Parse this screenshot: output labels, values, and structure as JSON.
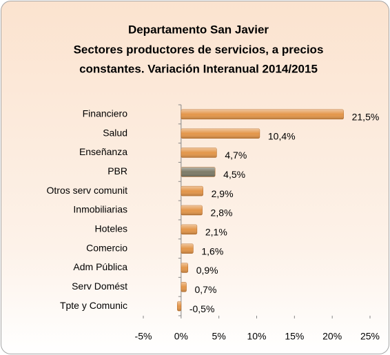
{
  "chart_data": {
    "type": "bar",
    "orientation": "horizontal",
    "title": [
      "Departamento San Javier",
      "Sectores productores de servicios, a precios",
      "constantes. Variación Interanual 2014/2015"
    ],
    "categories": [
      "Financiero",
      "Salud",
      "Enseñanza",
      "PBR",
      "Otros serv comunit",
      "Inmobiliarias",
      "Hoteles",
      "Comercio",
      "Adm Pública",
      "Serv Domést",
      "Tpte y Comunic"
    ],
    "values": [
      21.5,
      10.4,
      4.7,
      4.5,
      2.9,
      2.8,
      2.1,
      1.6,
      0.9,
      0.7,
      -0.5
    ],
    "value_labels": [
      "21,5%",
      "10,4%",
      "4,7%",
      "4,5%",
      "2,9%",
      "2,8%",
      "2,1%",
      "1,6%",
      "0,9%",
      "0,7%",
      "-0,5%"
    ],
    "colors": [
      "#e3964a",
      "#e3964a",
      "#e3964a",
      "#7d7b68",
      "#e3964a",
      "#e3964a",
      "#e3964a",
      "#e3964a",
      "#e3964a",
      "#e3964a",
      "#e3964a"
    ],
    "xlim": [
      -5,
      25
    ],
    "xticks": [
      {
        "value": -5,
        "label": "-5%"
      },
      {
        "value": 0,
        "label": "0%"
      },
      {
        "value": 5,
        "label": "5%"
      },
      {
        "value": 10,
        "label": "10%"
      },
      {
        "value": 15,
        "label": "15%"
      },
      {
        "value": 20,
        "label": "20%"
      },
      {
        "value": 25,
        "label": "25%"
      }
    ],
    "grid": false
  }
}
